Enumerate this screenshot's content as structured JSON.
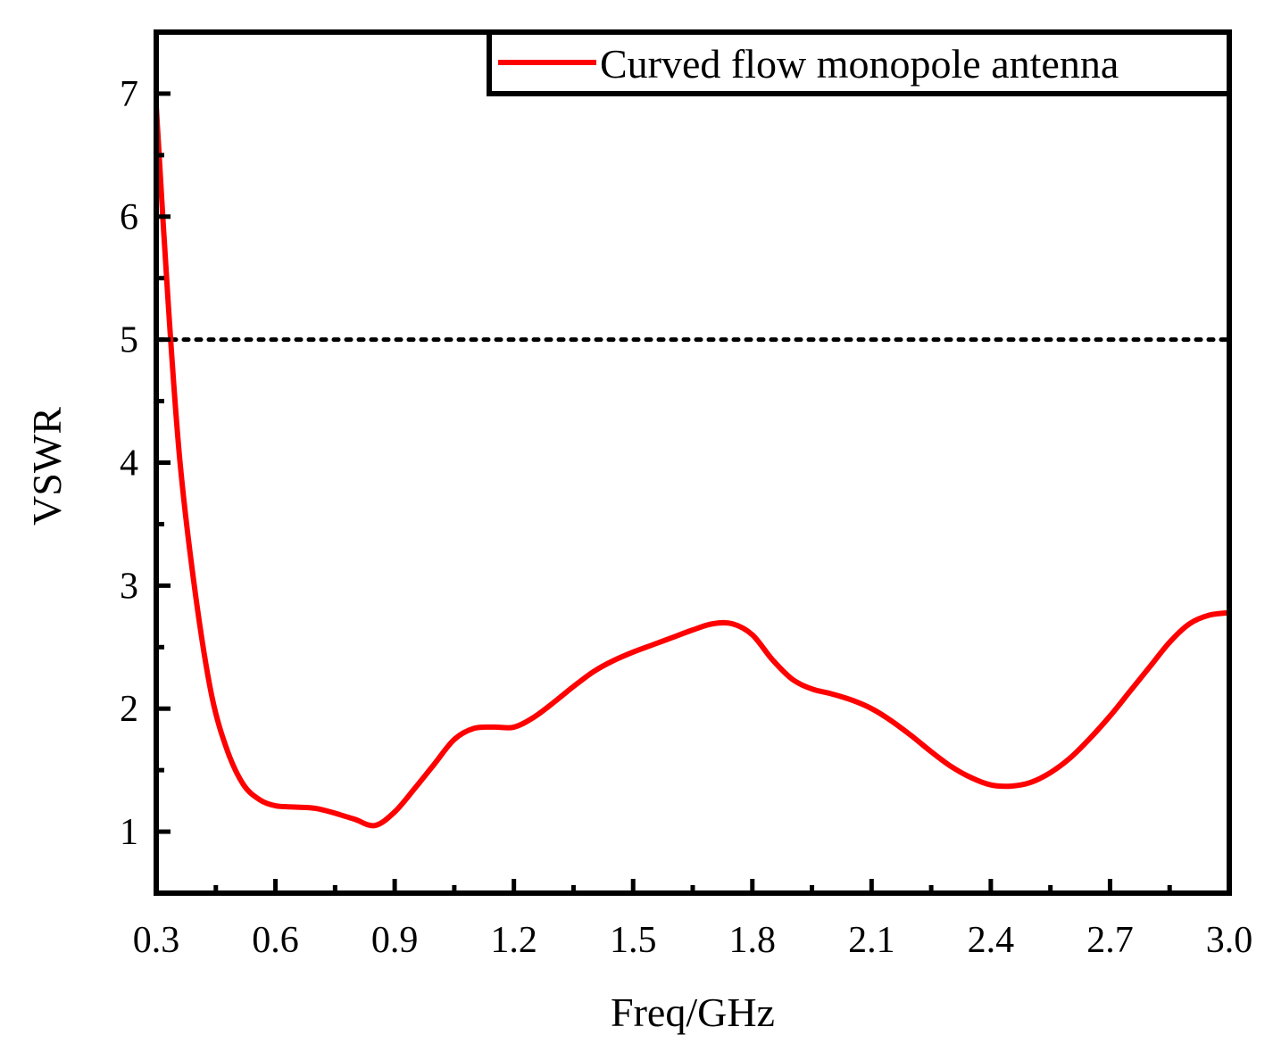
{
  "chart_data": {
    "type": "line",
    "title": "",
    "xlabel": "Freq/GHz",
    "ylabel": "VSWR",
    "xlim": [
      0.3,
      3.0
    ],
    "ylim": [
      0.5,
      7.5
    ],
    "xticks": [
      "0.3",
      "0.6",
      "0.9",
      "1.2",
      "1.5",
      "1.8",
      "2.1",
      "2.4",
      "2.7",
      "3.0"
    ],
    "yticks": [
      "1",
      "2",
      "3",
      "4",
      "5",
      "6",
      "7"
    ],
    "grid": false,
    "legend_position": "top-right",
    "reference_line": {
      "y": 5,
      "style": "dotted",
      "color": "#000000"
    },
    "series": [
      {
        "name": "Curved flow monopole antenna",
        "color": "#ff0000",
        "x": [
          0.3,
          0.33,
          0.36,
          0.4,
          0.44,
          0.48,
          0.52,
          0.56,
          0.6,
          0.65,
          0.7,
          0.75,
          0.8,
          0.85,
          0.9,
          0.95,
          1.0,
          1.05,
          1.1,
          1.15,
          1.2,
          1.25,
          1.3,
          1.35,
          1.4,
          1.45,
          1.5,
          1.55,
          1.6,
          1.65,
          1.7,
          1.75,
          1.8,
          1.85,
          1.9,
          1.95,
          2.0,
          2.05,
          2.1,
          2.15,
          2.2,
          2.25,
          2.3,
          2.35,
          2.4,
          2.45,
          2.5,
          2.55,
          2.6,
          2.65,
          2.7,
          2.75,
          2.8,
          2.85,
          2.9,
          2.95,
          3.0
        ],
        "y": [
          6.9,
          5.3,
          4.0,
          2.9,
          2.1,
          1.65,
          1.38,
          1.26,
          1.21,
          1.2,
          1.19,
          1.15,
          1.1,
          1.05,
          1.16,
          1.35,
          1.55,
          1.75,
          1.84,
          1.85,
          1.85,
          1.93,
          2.05,
          2.18,
          2.3,
          2.39,
          2.46,
          2.52,
          2.58,
          2.64,
          2.69,
          2.69,
          2.6,
          2.4,
          2.24,
          2.16,
          2.12,
          2.07,
          2.0,
          1.9,
          1.78,
          1.65,
          1.53,
          1.44,
          1.38,
          1.37,
          1.4,
          1.48,
          1.6,
          1.76,
          1.94,
          2.14,
          2.34,
          2.54,
          2.69,
          2.76,
          2.78
        ]
      }
    ]
  }
}
